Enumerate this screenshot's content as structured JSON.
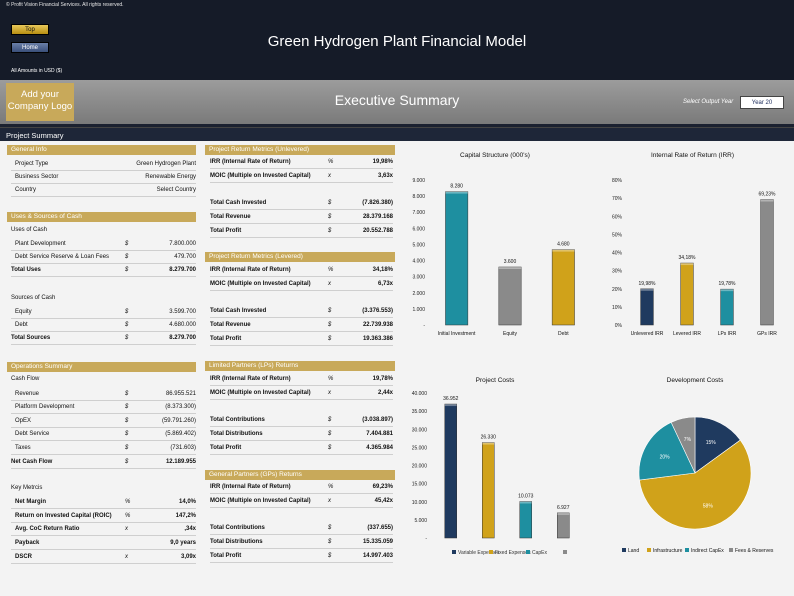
{
  "copyright": "© Profit Vision Financial Services. All rights reserved.",
  "nav": {
    "top": "Top",
    "home": "Home"
  },
  "title": "Green Hydrogen Plant Financial Model",
  "amounts": "All Amounts in  USD ($)",
  "logo": {
    "line1": "Add your",
    "line2": "Company Logo"
  },
  "banner_title": "Executive Summary",
  "output_year_label": "Select Output Year",
  "output_year_value": "Year 20",
  "summary_title": "Project Summary",
  "general_info": {
    "heading": "General Info",
    "rows": [
      {
        "label": "Project Type",
        "value": "Green Hydrogen Plant"
      },
      {
        "label": "Business Sector",
        "value": "Renewable Energy"
      },
      {
        "label": "Country",
        "value": "Select Country"
      }
    ]
  },
  "uses_sources": {
    "heading": "Uses & Sources of Cash",
    "uses_label": "Uses of Cash",
    "uses": [
      {
        "label": "Plant Development",
        "cur": "$",
        "value": "7.800.000"
      },
      {
        "label": "Debt Service Reserve & Loan Fees",
        "cur": "$",
        "value": "479.700"
      }
    ],
    "total_uses": {
      "label": "Total Uses",
      "cur": "$",
      "value": "8.279.700"
    },
    "sources_label": "Sources of Cash",
    "sources": [
      {
        "label": "Equity",
        "cur": "$",
        "value": "3.599.700"
      },
      {
        "label": "Debt",
        "cur": "$",
        "value": "4.680.000"
      }
    ],
    "total_sources": {
      "label": "Total Sources",
      "cur": "$",
      "value": "8.279.700"
    }
  },
  "operations": {
    "heading": "Operations Summary",
    "cashflow_label": "Cash Flow",
    "rows": [
      {
        "label": "Revenue",
        "cur": "$",
        "value": "86.955.521"
      },
      {
        "label": "Platform Development",
        "cur": "$",
        "value": "(8.373.300)"
      },
      {
        "label": "OpEX",
        "cur": "$",
        "value": "(59.791.260)"
      },
      {
        "label": "Debt Service",
        "cur": "$",
        "value": "(5.869.402)"
      },
      {
        "label": "Taxes",
        "cur": "$",
        "value": "(731.603)"
      }
    ],
    "net": {
      "label": "Net Cash Flow",
      "cur": "$",
      "value": "12.189.955"
    },
    "metrics_label": "Key Metrcis",
    "metrics": [
      {
        "label": "Net Margin",
        "cur": "%",
        "value": "14,0%"
      },
      {
        "label": "Return on Invested Capital (ROIC)",
        "cur": "%",
        "value": "147,2%"
      },
      {
        "label": "Avg. CoC Return Ratio",
        "cur": "x",
        "value": ",34x"
      },
      {
        "label": "Payback",
        "cur": "",
        "value": "9,0 years"
      },
      {
        "label": "DSCR",
        "cur": "x",
        "value": "3,09x"
      }
    ]
  },
  "unlevered": {
    "heading": "Project Return Metrics (Unlevered)",
    "rows": [
      {
        "label": "IRR (Internal Rate of Return)",
        "cur": "%",
        "value": "19,98%"
      },
      {
        "label": "MOIC (Multiple on Invested Capital)",
        "cur": "x",
        "value": "3,63x"
      },
      {
        "label": "Total Cash Invested",
        "cur": "$",
        "value": "(7.826.380)"
      },
      {
        "label": "Total Revenue",
        "cur": "$",
        "value": "28.379.168"
      },
      {
        "label": "Total Profit",
        "cur": "$",
        "value": "20.552.788"
      }
    ]
  },
  "levered": {
    "heading": "Project Return Metrics (Levered)",
    "rows": [
      {
        "label": "IRR (Internal Rate of Return)",
        "cur": "%",
        "value": "34,18%"
      },
      {
        "label": "MOIC (Multiple on Invested Capital)",
        "cur": "x",
        "value": "6,73x"
      },
      {
        "label": "Total Cash Invested",
        "cur": "$",
        "value": "(3.376.553)"
      },
      {
        "label": "Total Revenue",
        "cur": "$",
        "value": "22.739.938"
      },
      {
        "label": "Total Profit",
        "cur": "$",
        "value": "19.363.386"
      }
    ]
  },
  "lps": {
    "heading": "Limited Partners (LPs) Returns",
    "rows": [
      {
        "label": "IRR (Internal Rate of Return)",
        "cur": "%",
        "value": "19,78%"
      },
      {
        "label": "MOIC (Multiple on Invested Capital)",
        "cur": "x",
        "value": "2,44x"
      },
      {
        "label": "Total Contributions",
        "cur": "$",
        "value": "(3.038.897)"
      },
      {
        "label": "Total Distributions",
        "cur": "$",
        "value": "7.404.881"
      },
      {
        "label": "Total Profit",
        "cur": "$",
        "value": "4.365.984"
      }
    ]
  },
  "gps": {
    "heading": "General Partners (GPs) Returns",
    "rows": [
      {
        "label": "IRR (Internal Rate of Return)",
        "cur": "%",
        "value": "69,23%"
      },
      {
        "label": "MOIC (Multiple on Invested Capital)",
        "cur": "x",
        "value": "45,42x"
      },
      {
        "label": "Total Contributions",
        "cur": "$",
        "value": "(337.655)"
      },
      {
        "label": "Total Distributions",
        "cur": "$",
        "value": "15.335.059"
      },
      {
        "label": "Total Profit",
        "cur": "$",
        "value": "14.997.403"
      }
    ]
  },
  "chart_data": [
    {
      "type": "bar",
      "title": "Capital Structure (000's)",
      "categories": [
        "Initial Investment",
        "Equity",
        "Debt"
      ],
      "values": [
        8280,
        3600,
        4680
      ],
      "labels": [
        "8.280",
        "3.600",
        "4.680"
      ],
      "ylim": [
        0,
        9000
      ],
      "yticks": [
        "-",
        "1.000",
        "2.000",
        "3.000",
        "4.000",
        "5.000",
        "6.000",
        "7.000",
        "8.000",
        "9.000"
      ],
      "colors": [
        "#1e8fa0",
        "#8a8a8a",
        "#d0a21a"
      ],
      "grid": false
    },
    {
      "type": "bar",
      "title": "Internal Rate of Return (IRR)",
      "categories": [
        "Unlevered IRR",
        "Levered IRR",
        "LPs IRR",
        "GPs IRR"
      ],
      "values": [
        19.98,
        34.18,
        19.78,
        69.23
      ],
      "labels": [
        "19,98%",
        "34,18%",
        "19,78%",
        "69,23%"
      ],
      "ylim": [
        0,
        80
      ],
      "yticks": [
        "0%",
        "10%",
        "20%",
        "30%",
        "40%",
        "50%",
        "60%",
        "70%",
        "80%"
      ],
      "colors": [
        "#1f3a5f",
        "#d0a21a",
        "#1e8fa0",
        "#8a8a8a"
      ],
      "grid": false
    },
    {
      "type": "bar",
      "title": "Project Costs",
      "categories": [
        "Variable Expenses",
        "Fixed Expenses",
        "CapEx",
        ""
      ],
      "values": [
        36952,
        26330,
        10073,
        6927
      ],
      "labels": [
        "36.952",
        "26.330",
        "10.073",
        "6.927"
      ],
      "ylim": [
        0,
        40000
      ],
      "yticks": [
        "-",
        "5.000",
        "10.000",
        "15.000",
        "20.000",
        "25.000",
        "30.000",
        "35.000",
        "40.000"
      ],
      "colors": [
        "#1f3a5f",
        "#d0a21a",
        "#1e8fa0",
        "#8a8a8a"
      ],
      "legend": "bottom",
      "grid": false
    },
    {
      "type": "pie",
      "title": "Development Costs",
      "categories": [
        "Land",
        "Infrastructure",
        "Indirect CapEx",
        "Fees & Reserves"
      ],
      "values": [
        15,
        58,
        20,
        7
      ],
      "labels": [
        "15%",
        "58%",
        "20%",
        "7%"
      ],
      "colors": [
        "#1f3a5f",
        "#d0a21a",
        "#1e8fa0",
        "#8a8a8a"
      ],
      "legend": "bottom"
    }
  ]
}
